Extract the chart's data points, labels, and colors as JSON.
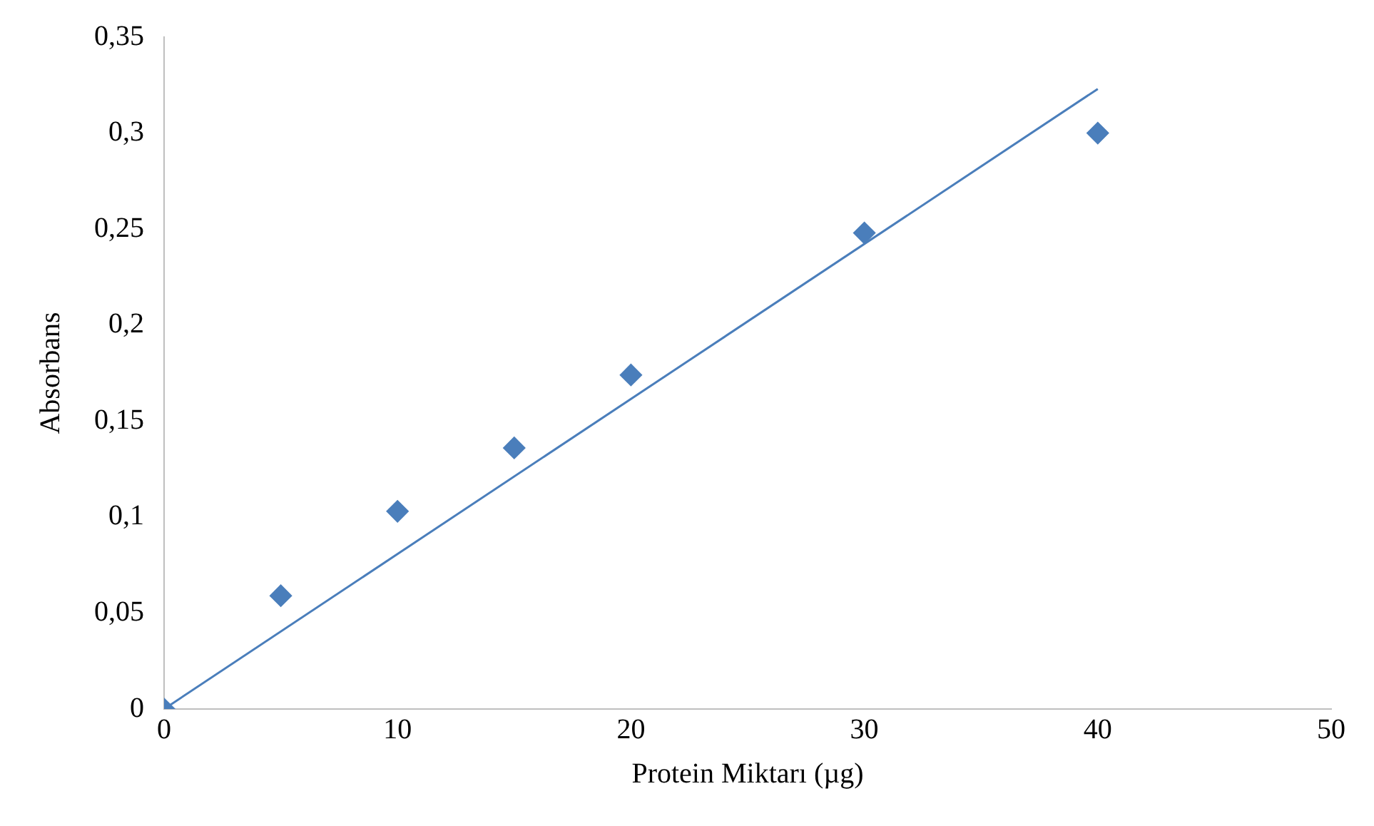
{
  "chart_data": {
    "type": "scatter",
    "xlabel": "Protein Miktarı (µg)",
    "ylabel": "Absorbans",
    "x": [
      0,
      5,
      10,
      15,
      20,
      30,
      40
    ],
    "series": [
      {
        "color": "#4a7ebb",
        "values": [
          0,
          0.059,
          0.103,
          0.136,
          0.174,
          0.248,
          0.3
        ],
        "marker": "diamond"
      },
      {
        "type": "line",
        "color": "#4a7ebb",
        "x": [
          0,
          40
        ],
        "values": [
          0,
          0.323
        ],
        "marker": "none",
        "line_style": "solid"
      }
    ],
    "xlim": [
      0,
      50
    ],
    "xticks": [
      0,
      10,
      20,
      30,
      40,
      50
    ],
    "ylim": [
      0,
      0.35
    ],
    "yticks": [
      0,
      {
        "value": 0.05,
        "label": "0,05"
      },
      {
        "value": 0.1,
        "label": "0,1"
      },
      {
        "value": 0.15,
        "label": "0,15"
      },
      {
        "value": 0.2,
        "label": "0,2"
      },
      {
        "value": 0.25,
        "label": "0,25"
      },
      {
        "value": 0.3,
        "label": "0,3"
      },
      {
        "value": 0.35,
        "label": "0,35"
      }
    ],
    "grid": false,
    "legend": false
  }
}
